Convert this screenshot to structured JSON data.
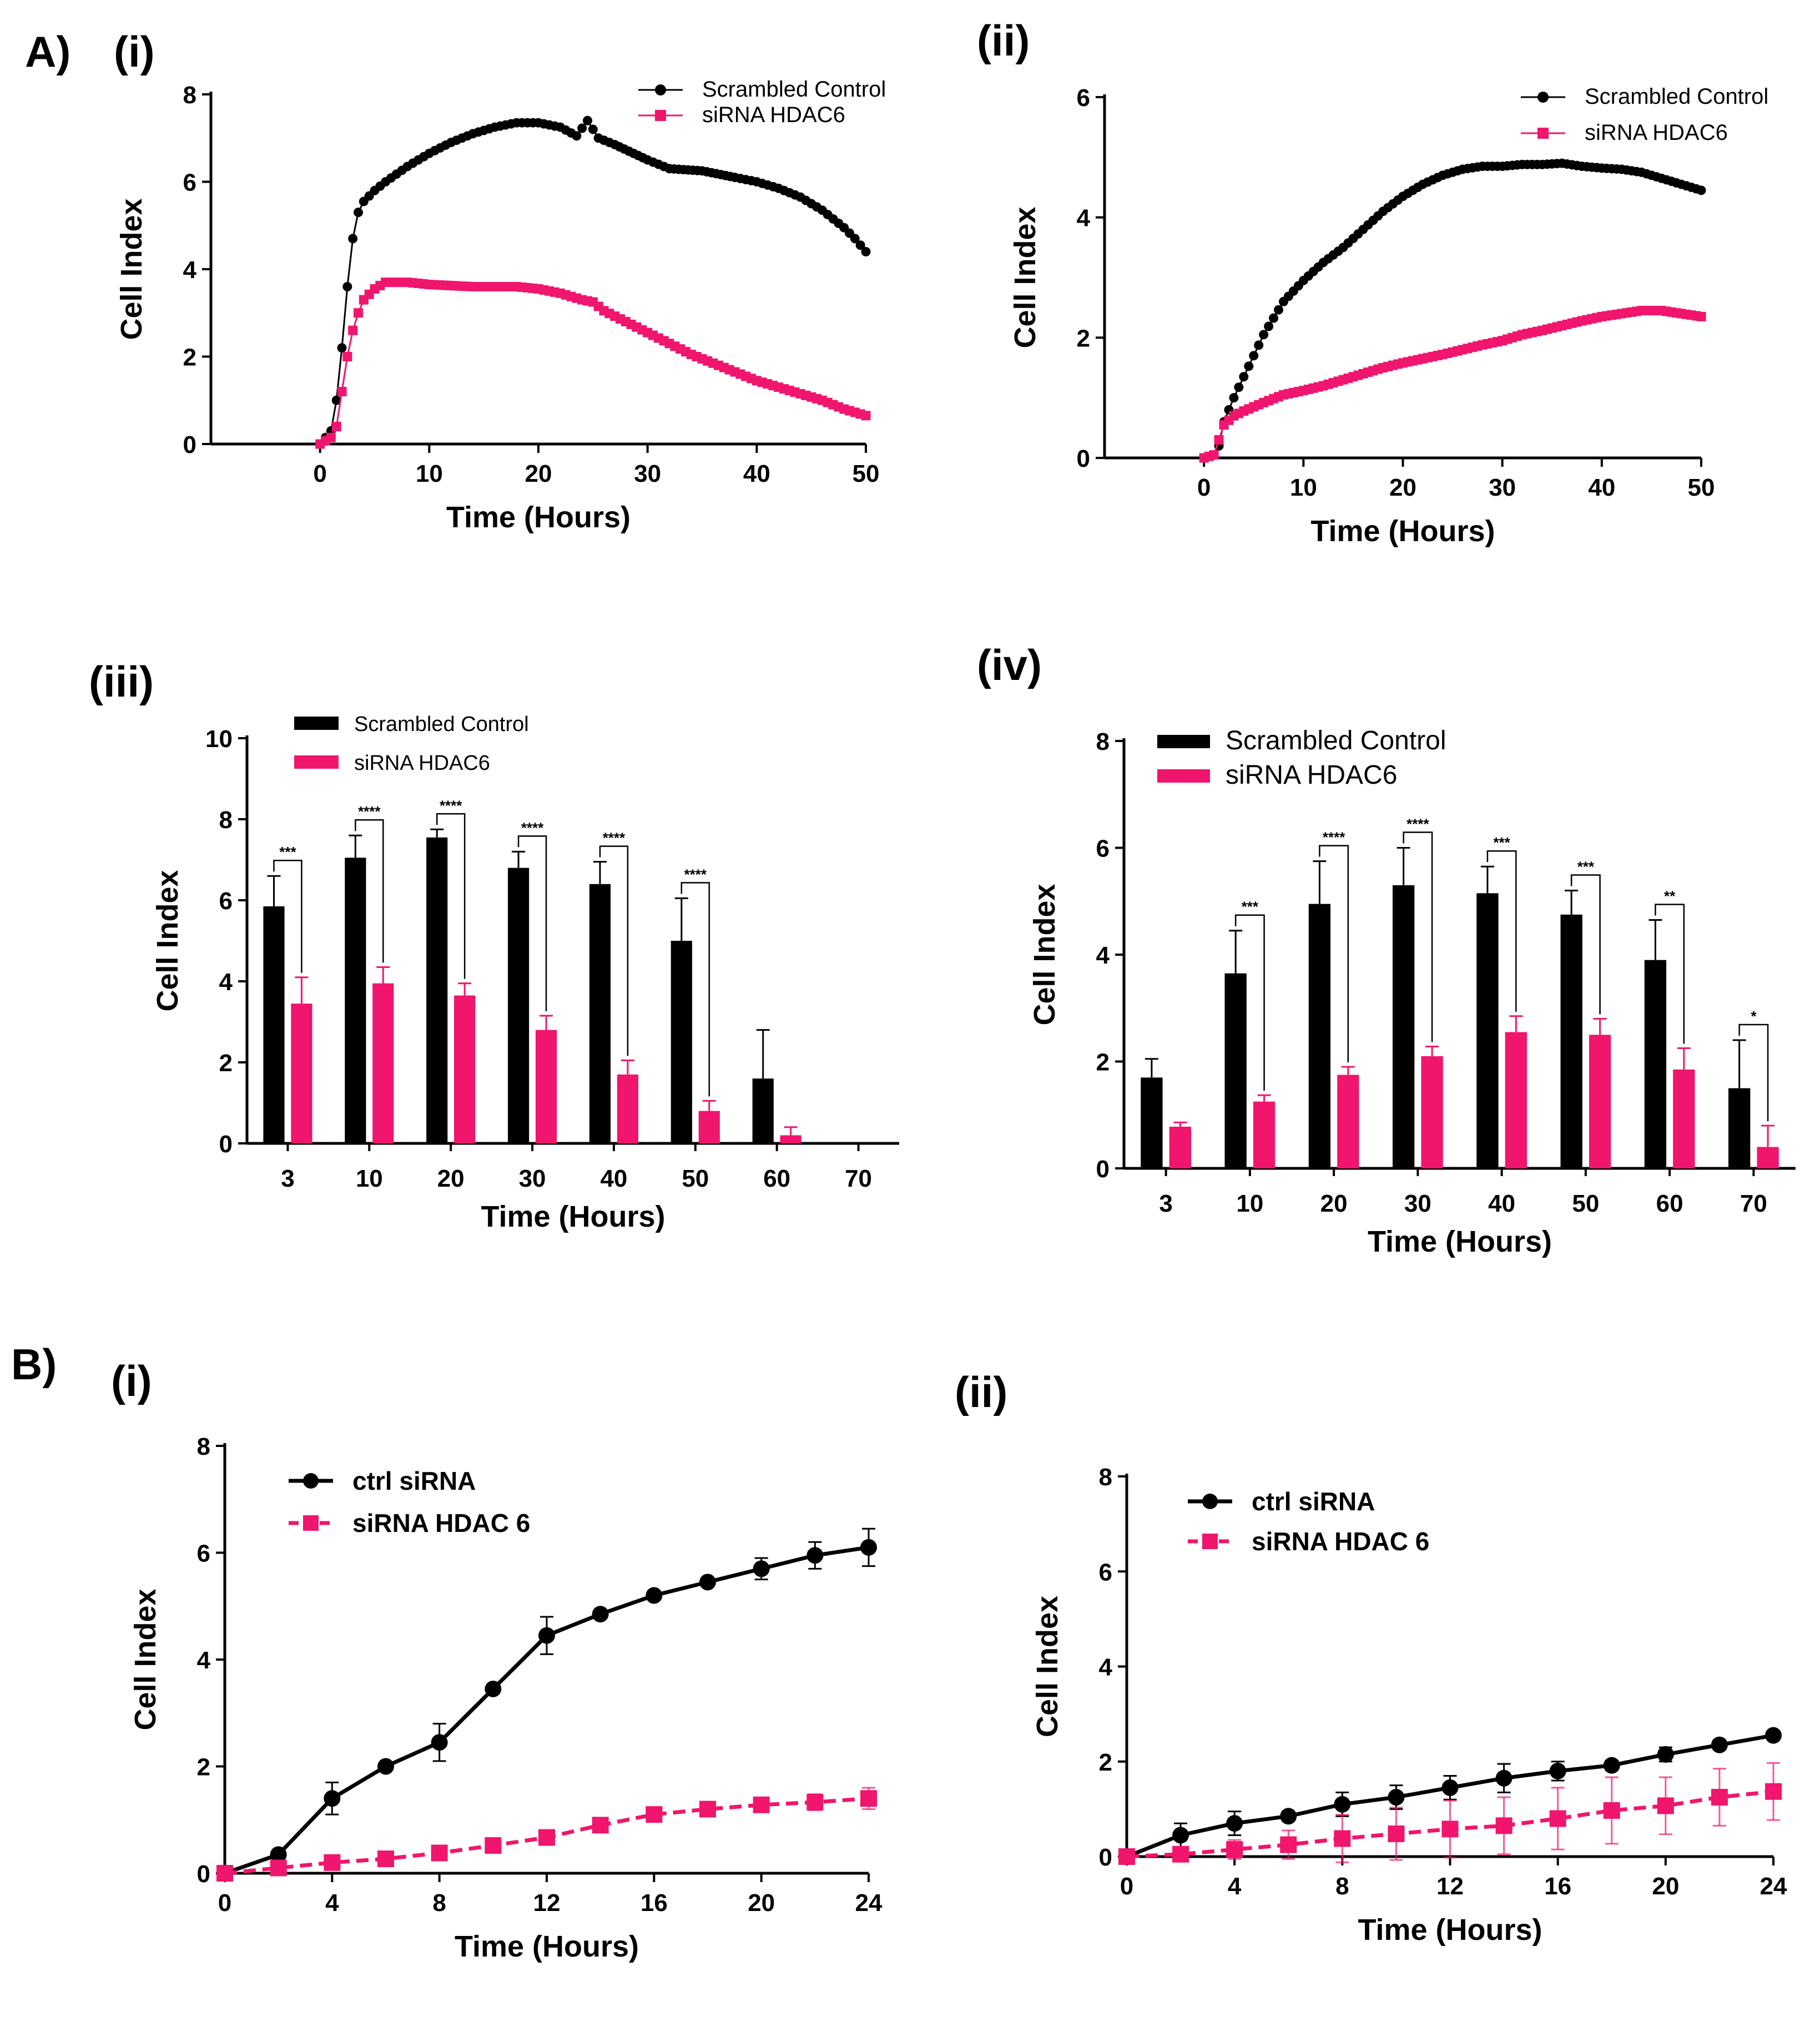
{
  "panel_labels": {
    "A": "A)",
    "B": "B)",
    "Ai": "(i)",
    "Aii": "(ii)",
    "Aiii": "(iii)",
    "Aiv": "(iv)",
    "Bi": "(i)",
    "Bii": "(ii)"
  },
  "colors": {
    "control": "#000000",
    "hdac6": "#f0156d"
  },
  "chart_data": [
    {
      "id": "Ai",
      "type": "line",
      "title": "",
      "xlabel": "Time (Hours)",
      "ylabel": "Cell Index",
      "xlim": [
        -10,
        50
      ],
      "ylim": [
        0,
        8
      ],
      "xticks": [
        0,
        10,
        20,
        30,
        40,
        50
      ],
      "yticks": [
        0,
        2,
        4,
        6,
        8
      ],
      "dense": true,
      "legend": "top-right",
      "series": [
        {
          "name": "Scrambled Control",
          "marker": "circle",
          "x": [
            0,
            1,
            1.5,
            2,
            2.5,
            3,
            3.5,
            4,
            5,
            6,
            8,
            10,
            12,
            14,
            16,
            18,
            20,
            22,
            23.5,
            24.5,
            25.5,
            27,
            30,
            32,
            35,
            38,
            40,
            42,
            44,
            46,
            47,
            48,
            49,
            50
          ],
          "values": [
            0,
            0.3,
            1.0,
            2.2,
            3.6,
            4.7,
            5.3,
            5.55,
            5.8,
            6.0,
            6.35,
            6.65,
            6.9,
            7.1,
            7.25,
            7.35,
            7.35,
            7.25,
            7.05,
            7.4,
            7.0,
            6.85,
            6.5,
            6.3,
            6.25,
            6.1,
            6.0,
            5.85,
            5.65,
            5.35,
            5.15,
            4.95,
            4.7,
            4.4
          ]
        },
        {
          "name": "siRNA HDAC6",
          "marker": "square",
          "x": [
            0,
            1,
            1.5,
            2,
            2.5,
            3,
            3.5,
            4,
            5,
            6,
            8,
            10,
            14,
            18,
            20,
            22,
            24,
            25,
            26,
            28,
            30,
            32,
            34,
            36,
            38,
            40,
            42,
            44,
            46,
            48,
            50
          ],
          "values": [
            0,
            0.15,
            0.4,
            1.2,
            2.0,
            2.6,
            3.0,
            3.3,
            3.55,
            3.7,
            3.7,
            3.65,
            3.6,
            3.6,
            3.55,
            3.45,
            3.3,
            3.25,
            3.05,
            2.8,
            2.55,
            2.3,
            2.05,
            1.85,
            1.65,
            1.45,
            1.3,
            1.15,
            1.0,
            0.8,
            0.65
          ]
        }
      ]
    },
    {
      "id": "Aii",
      "type": "line",
      "title": "",
      "xlabel": "Time (Hours)",
      "ylabel": "Cell Index",
      "xlim": [
        -10,
        50
      ],
      "ylim": [
        0,
        6
      ],
      "xticks": [
        0,
        10,
        20,
        30,
        40,
        50
      ],
      "yticks": [
        0,
        2,
        4,
        6
      ],
      "dense": true,
      "legend": "top-right",
      "series": [
        {
          "name": "Scrambled Control",
          "marker": "circle",
          "x": [
            0,
            1,
            1.5,
            2,
            3,
            4,
            5,
            6,
            8,
            10,
            12,
            14,
            16,
            18,
            20,
            22,
            24,
            26,
            28,
            30,
            32,
            34,
            36,
            38,
            40,
            42,
            44,
            46,
            48,
            50
          ],
          "values": [
            0,
            0.05,
            0.2,
            0.6,
            1.0,
            1.35,
            1.7,
            2.05,
            2.6,
            2.95,
            3.25,
            3.5,
            3.8,
            4.1,
            4.35,
            4.55,
            4.7,
            4.8,
            4.85,
            4.85,
            4.88,
            4.88,
            4.9,
            4.85,
            4.82,
            4.8,
            4.75,
            4.65,
            4.55,
            4.45
          ]
        },
        {
          "name": "siRNA HDAC6",
          "marker": "square",
          "x": [
            0,
            1,
            1.5,
            2,
            3,
            4,
            5,
            6,
            8,
            10,
            12,
            14,
            16,
            18,
            20,
            22,
            24,
            26,
            28,
            30,
            32,
            34,
            36,
            38,
            40,
            42,
            44,
            46,
            48,
            50
          ],
          "values": [
            0,
            0.05,
            0.3,
            0.55,
            0.7,
            0.78,
            0.85,
            0.92,
            1.05,
            1.12,
            1.2,
            1.3,
            1.4,
            1.5,
            1.58,
            1.65,
            1.72,
            1.8,
            1.88,
            1.95,
            2.05,
            2.12,
            2.2,
            2.28,
            2.35,
            2.4,
            2.45,
            2.45,
            2.4,
            2.35
          ]
        }
      ]
    },
    {
      "id": "Aiii",
      "type": "bar",
      "title": "",
      "xlabel": "Time (Hours)",
      "ylabel": "Cell Index",
      "ylim": [
        0,
        10
      ],
      "yticks": [
        0,
        2,
        4,
        6,
        8,
        10
      ],
      "legend": "top-left",
      "categories": [
        "3",
        "10",
        "20",
        "30",
        "40",
        "50",
        "60",
        "70"
      ],
      "series": [
        {
          "name": "Scrambled Control",
          "values": [
            5.85,
            7.05,
            7.55,
            6.8,
            6.4,
            5.0,
            1.6,
            0.03
          ],
          "errors": [
            0.75,
            0.55,
            0.2,
            0.4,
            0.55,
            1.05,
            1.2,
            0
          ]
        },
        {
          "name": "siRNA HDAC6",
          "values": [
            3.45,
            3.95,
            3.65,
            2.8,
            1.7,
            0.8,
            0.2,
            0
          ],
          "errors": [
            0.65,
            0.4,
            0.3,
            0.35,
            0.35,
            0.25,
            0.2,
            0
          ]
        }
      ],
      "significance": [
        {
          "category": "3",
          "label": "***"
        },
        {
          "category": "10",
          "label": "****"
        },
        {
          "category": "20",
          "label": "****"
        },
        {
          "category": "30",
          "label": "****"
        },
        {
          "category": "40",
          "label": "****"
        },
        {
          "category": "50",
          "label": "****"
        }
      ]
    },
    {
      "id": "Aiv",
      "type": "bar",
      "title": "",
      "xlabel": "Time (Hours)",
      "ylabel": "Cell Index",
      "ylim": [
        0,
        8
      ],
      "yticks": [
        0,
        2,
        4,
        6,
        8
      ],
      "legend": "top-left",
      "categories": [
        "3",
        "10",
        "20",
        "30",
        "40",
        "50",
        "60",
        "70"
      ],
      "series": [
        {
          "name": "Scrambled Control",
          "values": [
            1.7,
            3.65,
            4.95,
            5.3,
            5.15,
            4.75,
            3.9,
            1.5
          ],
          "errors": [
            0.35,
            0.8,
            0.8,
            0.7,
            0.5,
            0.45,
            0.75,
            0.9
          ]
        },
        {
          "name": "siRNA HDAC6",
          "values": [
            0.78,
            1.25,
            1.75,
            2.1,
            2.55,
            2.5,
            1.85,
            0.4
          ],
          "errors": [
            0.08,
            0.12,
            0.15,
            0.18,
            0.3,
            0.3,
            0.4,
            0.4
          ]
        }
      ],
      "significance": [
        {
          "category": "10",
          "label": "***"
        },
        {
          "category": "20",
          "label": "****"
        },
        {
          "category": "30",
          "label": "****"
        },
        {
          "category": "40",
          "label": "***"
        },
        {
          "category": "50",
          "label": "***"
        },
        {
          "category": "60",
          "label": "**"
        },
        {
          "category": "70",
          "label": "*"
        }
      ]
    },
    {
      "id": "Bi",
      "type": "line",
      "title": "",
      "xlabel": "Time (Hours)",
      "ylabel": "Cell Index",
      "xlim": [
        0,
        24
      ],
      "ylim": [
        0,
        8
      ],
      "xticks": [
        0,
        4,
        8,
        12,
        16,
        20,
        24
      ],
      "yticks": [
        0,
        2,
        4,
        6,
        8
      ],
      "dense": false,
      "legend": "top-left",
      "series": [
        {
          "name": "ctrl siRNA",
          "marker": "circle",
          "dashed": false,
          "x": [
            0,
            2,
            4,
            6,
            8,
            10,
            12,
            14,
            16,
            18,
            20,
            22,
            24
          ],
          "values": [
            0,
            0.35,
            1.4,
            2.0,
            2.45,
            3.45,
            4.45,
            4.85,
            5.2,
            5.45,
            5.7,
            5.95,
            6.1
          ],
          "errors": [
            0,
            0.05,
            0.3,
            0.08,
            0.35,
            0.08,
            0.35,
            0.08,
            0.08,
            0.08,
            0.2,
            0.25,
            0.35
          ]
        },
        {
          "name": "siRNA HDAC 6",
          "marker": "square",
          "dashed": true,
          "x": [
            0,
            2,
            4,
            6,
            8,
            10,
            12,
            14,
            16,
            18,
            20,
            22,
            24
          ],
          "values": [
            0,
            0.1,
            0.2,
            0.27,
            0.38,
            0.52,
            0.67,
            0.9,
            1.1,
            1.2,
            1.28,
            1.33,
            1.4
          ],
          "errors": [
            0,
            0.03,
            0.05,
            0.05,
            0.05,
            0.05,
            0.08,
            0.1,
            0.12,
            0.12,
            0.12,
            0.15,
            0.2
          ]
        }
      ]
    },
    {
      "id": "Bii",
      "type": "line",
      "title": "",
      "xlabel": "Time (Hours)",
      "ylabel": "Cell Index",
      "xlim": [
        0,
        24
      ],
      "ylim": [
        0,
        8
      ],
      "xticks": [
        0,
        4,
        8,
        12,
        16,
        20,
        24
      ],
      "yticks": [
        0,
        2,
        4,
        6,
        8
      ],
      "dense": false,
      "legend": "top-left",
      "series": [
        {
          "name": "ctrl siRNA",
          "marker": "circle",
          "dashed": false,
          "x": [
            0,
            2,
            4,
            6,
            8,
            10,
            12,
            14,
            16,
            18,
            20,
            22,
            24
          ],
          "values": [
            0,
            0.45,
            0.7,
            0.85,
            1.1,
            1.25,
            1.45,
            1.65,
            1.8,
            1.92,
            2.15,
            2.35,
            2.55
          ],
          "errors": [
            0,
            0.25,
            0.25,
            0.1,
            0.25,
            0.25,
            0.25,
            0.3,
            0.2,
            0.1,
            0.15,
            0.1,
            0.08
          ]
        },
        {
          "name": "siRNA HDAC 6",
          "marker": "square",
          "dashed": true,
          "x": [
            0,
            2,
            4,
            6,
            8,
            10,
            12,
            14,
            16,
            18,
            20,
            22,
            24
          ],
          "values": [
            0,
            0.05,
            0.15,
            0.25,
            0.38,
            0.48,
            0.58,
            0.65,
            0.8,
            0.97,
            1.07,
            1.25,
            1.37
          ],
          "errors": [
            0,
            0.1,
            0.2,
            0.3,
            0.5,
            0.55,
            0.6,
            0.6,
            0.65,
            0.7,
            0.6,
            0.6,
            0.6
          ]
        }
      ]
    }
  ]
}
